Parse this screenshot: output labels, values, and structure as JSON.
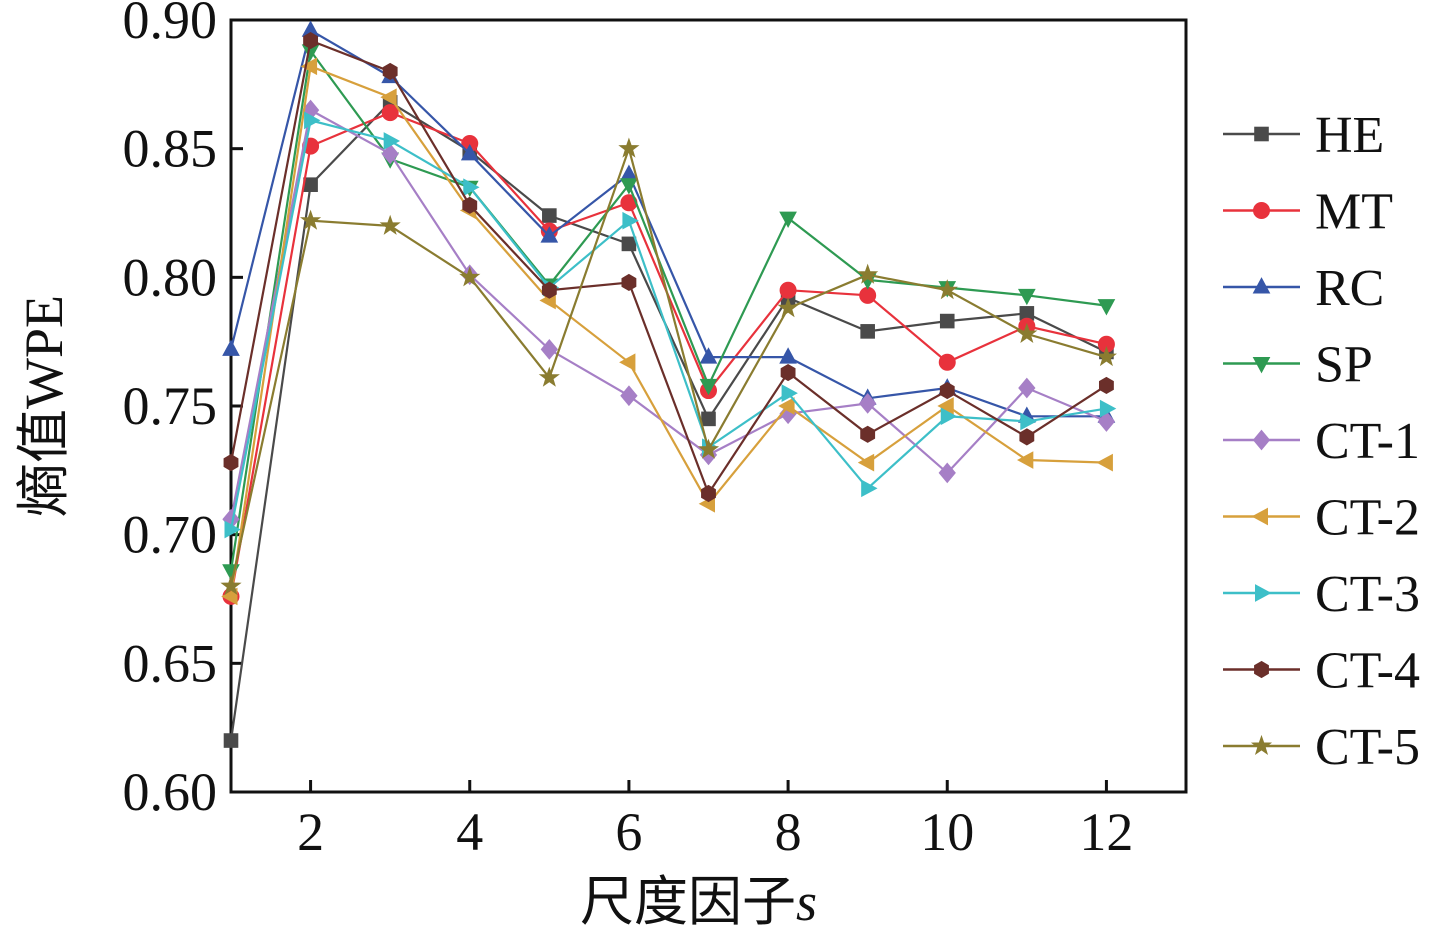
{
  "chart_data": {
    "type": "line",
    "xlabel": "尺度因子",
    "xlabel_var": "s",
    "ylabel": "熵值WPE",
    "xlim": [
      1,
      13
    ],
    "ylim": [
      0.6,
      0.9
    ],
    "xticks": [
      2,
      4,
      6,
      8,
      10,
      12
    ],
    "yticks": [
      0.6,
      0.65,
      0.7,
      0.75,
      0.8,
      0.85,
      0.9
    ],
    "ytick_labels": [
      "0.60",
      "0.65",
      "0.70",
      "0.75",
      "0.80",
      "0.85",
      "0.90"
    ],
    "grid": false,
    "legend_position": "right",
    "x": [
      1,
      2,
      3,
      4,
      5,
      6,
      7,
      8,
      9,
      10,
      11,
      12
    ],
    "series": [
      {
        "name": "HE",
        "color": "#4a4a4a",
        "marker": "square",
        "values": [
          0.62,
          0.836,
          0.868,
          0.849,
          0.824,
          0.813,
          0.745,
          0.792,
          0.779,
          0.783,
          0.786,
          0.771
        ]
      },
      {
        "name": "MT",
        "color": "#e8323c",
        "marker": "circle",
        "values": [
          0.676,
          0.851,
          0.864,
          0.852,
          0.818,
          0.829,
          0.756,
          0.795,
          0.793,
          0.767,
          0.781,
          0.774
        ]
      },
      {
        "name": "RC",
        "color": "#3656a8",
        "marker": "triangle-up",
        "values": [
          0.772,
          0.896,
          0.878,
          0.848,
          0.816,
          0.84,
          0.769,
          0.769,
          0.753,
          0.757,
          0.746,
          0.746
        ]
      },
      {
        "name": "SP",
        "color": "#2e9a52",
        "marker": "triangle-down",
        "values": [
          0.686,
          0.888,
          0.846,
          0.835,
          0.797,
          0.836,
          0.758,
          0.823,
          0.799,
          0.796,
          0.793,
          0.789
        ]
      },
      {
        "name": "CT-1",
        "color": "#a67fc6",
        "marker": "diamond",
        "values": [
          0.706,
          0.865,
          0.848,
          0.801,
          0.772,
          0.754,
          0.731,
          0.747,
          0.751,
          0.724,
          0.757,
          0.744
        ]
      },
      {
        "name": "CT-2",
        "color": "#d7a03c",
        "marker": "triangle-left",
        "values": [
          0.676,
          0.882,
          0.87,
          0.826,
          0.791,
          0.767,
          0.712,
          0.75,
          0.728,
          0.75,
          0.729,
          0.728
        ]
      },
      {
        "name": "CT-3",
        "color": "#3dbfc8",
        "marker": "triangle-right",
        "values": [
          0.702,
          0.861,
          0.853,
          0.835,
          0.796,
          0.822,
          0.734,
          0.755,
          0.718,
          0.746,
          0.744,
          0.749
        ]
      },
      {
        "name": "CT-4",
        "color": "#6b2f2a",
        "marker": "hexagon",
        "values": [
          0.728,
          0.892,
          0.88,
          0.828,
          0.795,
          0.798,
          0.716,
          0.763,
          0.739,
          0.756,
          0.738,
          0.758
        ]
      },
      {
        "name": "CT-5",
        "color": "#8a7c30",
        "marker": "star",
        "values": [
          0.68,
          0.822,
          0.82,
          0.8,
          0.761,
          0.85,
          0.733,
          0.788,
          0.801,
          0.795,
          0.778,
          0.769
        ]
      }
    ]
  }
}
